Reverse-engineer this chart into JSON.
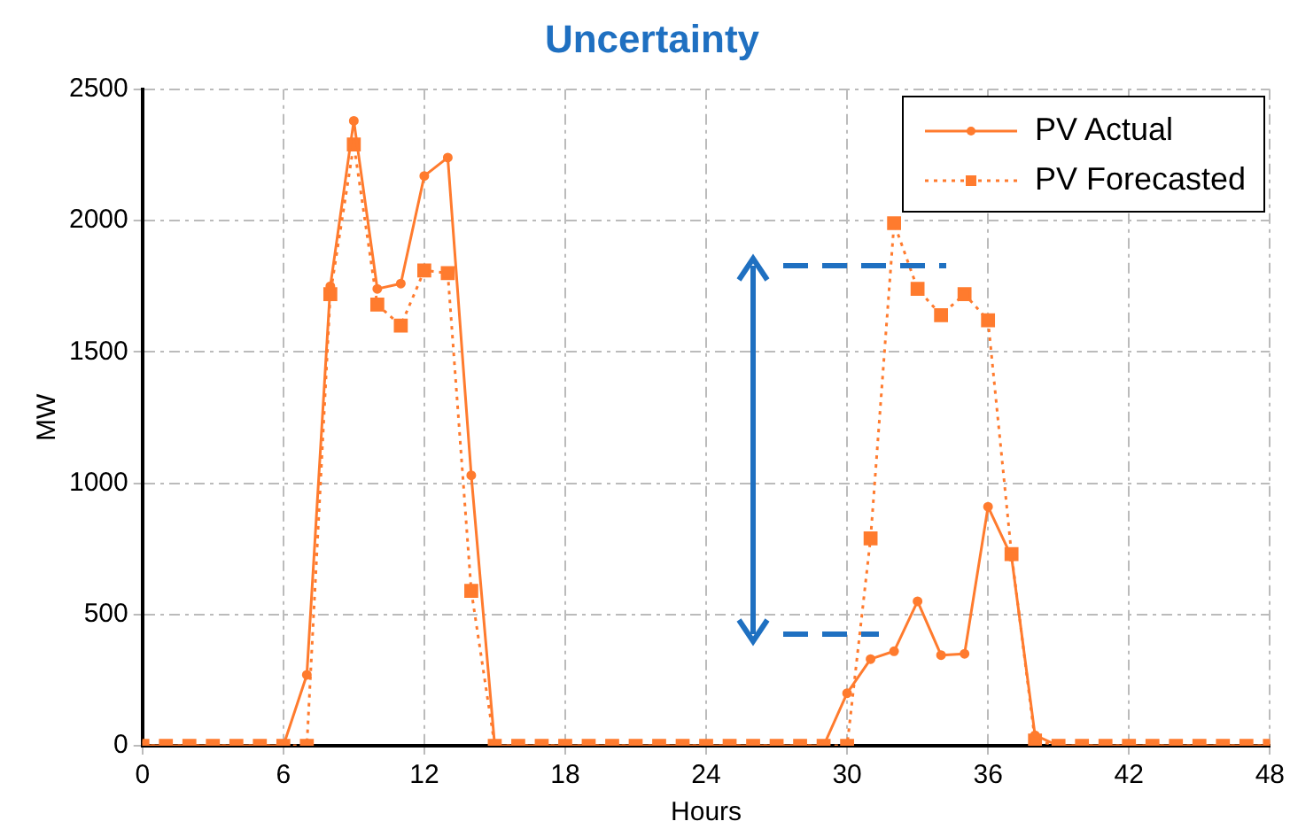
{
  "chart_data": {
    "type": "line",
    "title": "Uncertainty",
    "xlabel": "Hours",
    "ylabel": "MW",
    "x": [
      0,
      1,
      2,
      3,
      4,
      5,
      6,
      7,
      8,
      9,
      10,
      11,
      12,
      13,
      14,
      15,
      16,
      17,
      18,
      19,
      20,
      21,
      22,
      23,
      24,
      25,
      26,
      27,
      28,
      29,
      30,
      31,
      32,
      33,
      34,
      35,
      36,
      37,
      38,
      39,
      40,
      41,
      42,
      43,
      44,
      45,
      46,
      47,
      48
    ],
    "series": [
      {
        "name": "PV  Actual",
        "color": "#ff7b2e",
        "marker": "circle",
        "line_style": "solid",
        "values": [
          0,
          0,
          0,
          0,
          0,
          0,
          0,
          270,
          1750,
          2380,
          1740,
          1760,
          2170,
          2240,
          1030,
          0,
          0,
          0,
          0,
          0,
          0,
          0,
          0,
          0,
          0,
          0,
          0,
          0,
          0,
          0,
          200,
          330,
          360,
          550,
          345,
          350,
          910,
          720,
          40,
          0,
          0,
          0,
          0,
          0,
          0,
          0,
          0,
          0,
          0
        ]
      },
      {
        "name": "PV  Forecasted",
        "color": "#ff7b2e",
        "marker": "square",
        "line_style": "dotted",
        "values": [
          0,
          0,
          0,
          0,
          0,
          0,
          0,
          0,
          1720,
          2290,
          1680,
          1600,
          1810,
          1800,
          590,
          0,
          0,
          0,
          0,
          0,
          0,
          0,
          0,
          0,
          0,
          0,
          0,
          0,
          0,
          0,
          0,
          790,
          1990,
          1740,
          1640,
          1720,
          1620,
          730,
          20,
          0,
          0,
          0,
          0,
          0,
          0,
          0,
          0,
          0,
          0
        ]
      }
    ],
    "xlim": [
      0,
      48
    ],
    "xticks": [
      0,
      6,
      12,
      18,
      24,
      30,
      36,
      42,
      48
    ],
    "ylim": [
      0,
      2500
    ],
    "yticks": [
      0,
      500,
      1000,
      1500,
      2000,
      2500
    ],
    "grid": true,
    "legend": "top right"
  }
}
